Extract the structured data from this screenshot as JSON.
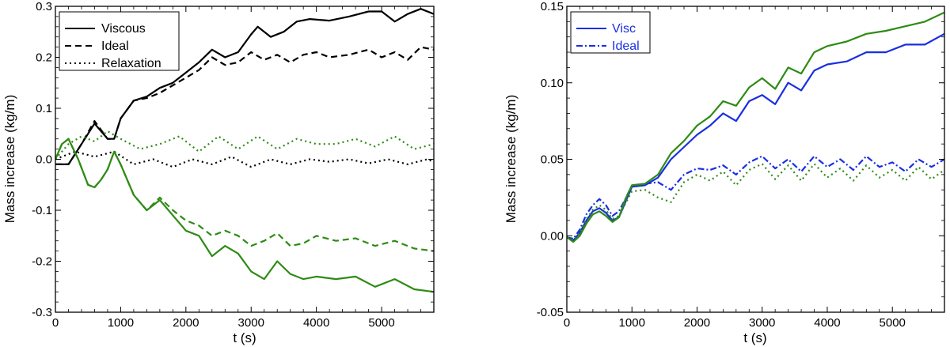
{
  "chart_data": [
    {
      "type": "line",
      "xlabel": "t (s)",
      "ylabel": "Mass increase (kg/m)",
      "xlim": [
        0,
        5800
      ],
      "ylim": [
        -0.3,
        0.3
      ],
      "xticks": [
        0,
        1000,
        2000,
        3000,
        4000,
        5000
      ],
      "xtick_labels": [
        "0",
        "1000",
        "2000",
        "3000",
        "4000",
        "5000"
      ],
      "yticks": [
        -0.3,
        -0.2,
        -0.1,
        0.0,
        0.1,
        0.2,
        0.3
      ],
      "ytick_labels": [
        "-0.3",
        "-0.2",
        "-0.1",
        "0.0",
        "0.1",
        "0.2",
        "0.3"
      ],
      "legend": [
        {
          "label": "Viscous",
          "style": "solid",
          "color": "#000000"
        },
        {
          "label": "Ideal",
          "style": "dashed",
          "color": "#000000"
        },
        {
          "label": "Relaxation",
          "style": "dotted",
          "color": "#000000"
        }
      ],
      "legend_position": "top-left",
      "series": [
        {
          "name": "Viscous (black)",
          "color": "#000000",
          "style": "solid",
          "x": [
            0,
            200,
            400,
            600,
            800,
            900,
            1000,
            1200,
            1400,
            1600,
            1800,
            2000,
            2200,
            2400,
            2600,
            2800,
            3000,
            3100,
            3300,
            3500,
            3700,
            3900,
            4200,
            4500,
            4800,
            5000,
            5200,
            5400,
            5600,
            5800
          ],
          "y": [
            -0.01,
            -0.01,
            0.03,
            0.07,
            0.04,
            0.04,
            0.08,
            0.115,
            0.123,
            0.14,
            0.15,
            0.17,
            0.19,
            0.215,
            0.2,
            0.21,
            0.245,
            0.26,
            0.24,
            0.25,
            0.27,
            0.275,
            0.272,
            0.28,
            0.29,
            0.29,
            0.27,
            0.285,
            0.295,
            0.285
          ]
        },
        {
          "name": "Ideal (black)",
          "color": "#000000",
          "style": "dashed",
          "x": [
            0,
            200,
            400,
            600,
            800,
            900,
            1000,
            1200,
            1400,
            1600,
            1800,
            2000,
            2200,
            2400,
            2600,
            2800,
            3000,
            3200,
            3400,
            3600,
            3800,
            4000,
            4200,
            4500,
            4800,
            5000,
            5200,
            5400,
            5600,
            5800
          ],
          "y": [
            -0.01,
            -0.01,
            0.03,
            0.075,
            0.04,
            0.04,
            0.08,
            0.115,
            0.12,
            0.13,
            0.145,
            0.16,
            0.175,
            0.2,
            0.185,
            0.19,
            0.21,
            0.195,
            0.205,
            0.19,
            0.205,
            0.21,
            0.2,
            0.205,
            0.215,
            0.2,
            0.21,
            0.195,
            0.22,
            0.215
          ]
        },
        {
          "name": "Relaxation (black)",
          "color": "#000000",
          "style": "dotted",
          "x": [
            0,
            300,
            600,
            900,
            1200,
            1500,
            1800,
            2100,
            2400,
            2700,
            3000,
            3300,
            3600,
            3900,
            4200,
            4500,
            4800,
            5100,
            5400,
            5700,
            5800
          ],
          "y": [
            0.0,
            0.015,
            0.005,
            0.015,
            -0.01,
            0.0,
            -0.015,
            0.0,
            -0.01,
            0.005,
            -0.015,
            0.0,
            -0.01,
            0.0,
            -0.005,
            0.0,
            -0.008,
            0.0,
            -0.01,
            0.0,
            -0.005
          ]
        },
        {
          "name": "Viscous (green)",
          "color": "#2e8b14",
          "style": "solid",
          "x": [
            0,
            100,
            200,
            350,
            500,
            600,
            700,
            800,
            900,
            1000,
            1200,
            1400,
            1600,
            1800,
            2000,
            2200,
            2400,
            2600,
            2800,
            3000,
            3200,
            3400,
            3600,
            3800,
            4000,
            4300,
            4600,
            4900,
            5200,
            5500,
            5800
          ],
          "y": [
            0.0,
            0.03,
            0.04,
            0.0,
            -0.05,
            -0.055,
            -0.04,
            -0.02,
            0.015,
            -0.01,
            -0.07,
            -0.1,
            -0.08,
            -0.11,
            -0.14,
            -0.15,
            -0.19,
            -0.17,
            -0.185,
            -0.22,
            -0.235,
            -0.2,
            -0.225,
            -0.235,
            -0.23,
            -0.235,
            -0.23,
            -0.25,
            -0.235,
            -0.255,
            -0.26
          ]
        },
        {
          "name": "Ideal (green)",
          "color": "#2e8b14",
          "style": "dashed",
          "x": [
            0,
            100,
            200,
            350,
            500,
            600,
            700,
            800,
            900,
            1000,
            1200,
            1400,
            1600,
            1800,
            2000,
            2200,
            2400,
            2600,
            2800,
            3000,
            3200,
            3400,
            3600,
            3800,
            4000,
            4300,
            4600,
            4900,
            5200,
            5500,
            5800
          ],
          "y": [
            0.0,
            0.03,
            0.04,
            0.0,
            -0.05,
            -0.055,
            -0.04,
            -0.02,
            0.015,
            -0.01,
            -0.07,
            -0.1,
            -0.075,
            -0.1,
            -0.12,
            -0.13,
            -0.15,
            -0.14,
            -0.15,
            -0.17,
            -0.16,
            -0.145,
            -0.17,
            -0.165,
            -0.15,
            -0.16,
            -0.155,
            -0.17,
            -0.16,
            -0.175,
            -0.18
          ]
        },
        {
          "name": "Relaxation (green)",
          "color": "#2e8b14",
          "style": "dotted",
          "x": [
            0,
            200,
            400,
            600,
            800,
            1000,
            1300,
            1600,
            1900,
            2200,
            2500,
            2800,
            3100,
            3400,
            3700,
            4000,
            4300,
            4600,
            4900,
            5200,
            5500,
            5800
          ],
          "y": [
            0.0,
            0.03,
            0.045,
            0.035,
            0.055,
            0.04,
            0.02,
            0.03,
            0.045,
            0.015,
            0.045,
            0.02,
            0.045,
            0.02,
            0.04,
            0.03,
            0.03,
            0.04,
            0.025,
            0.045,
            0.02,
            0.03
          ]
        }
      ]
    },
    {
      "type": "line",
      "xlabel": "t (s)",
      "ylabel": "Mass increase (kg/m)",
      "xlim": [
        0,
        5800
      ],
      "ylim": [
        -0.05,
        0.15
      ],
      "xticks": [
        0,
        1000,
        2000,
        3000,
        4000,
        5000
      ],
      "xtick_labels": [
        "0",
        "1000",
        "2000",
        "3000",
        "4000",
        "5000"
      ],
      "yticks": [
        -0.05,
        0.0,
        0.05,
        0.1,
        0.15
      ],
      "ytick_labels": [
        "-0.05",
        "0.00",
        "0.05",
        "0.10",
        "0.15"
      ],
      "legend": [
        {
          "label": "Visc",
          "style": "solid",
          "color": "#1a2fe0"
        },
        {
          "label": "Ideal",
          "style": "dashdot",
          "color": "#1a2fe0"
        }
      ],
      "legend_position": "top-left",
      "series": [
        {
          "name": "Visc (blue)",
          "color": "#1a2fe0",
          "style": "solid",
          "x": [
            0,
            100,
            200,
            300,
            400,
            500,
            600,
            700,
            800,
            900,
            1000,
            1200,
            1400,
            1600,
            1800,
            2000,
            2200,
            2400,
            2600,
            2800,
            3000,
            3200,
            3400,
            3600,
            3800,
            4000,
            4300,
            4600,
            4900,
            5200,
            5500,
            5800
          ],
          "y": [
            -0.001,
            -0.003,
            0.002,
            0.01,
            0.016,
            0.018,
            0.015,
            0.01,
            0.012,
            0.022,
            0.032,
            0.033,
            0.038,
            0.05,
            0.058,
            0.066,
            0.072,
            0.08,
            0.075,
            0.088,
            0.092,
            0.086,
            0.1,
            0.095,
            0.108,
            0.112,
            0.114,
            0.12,
            0.12,
            0.125,
            0.125,
            0.132
          ]
        },
        {
          "name": "Ideal (blue)",
          "color": "#1a2fe0",
          "style": "dashdot",
          "x": [
            0,
            100,
            200,
            300,
            400,
            500,
            600,
            700,
            800,
            900,
            1000,
            1200,
            1400,
            1600,
            1800,
            2000,
            2200,
            2400,
            2600,
            2800,
            3000,
            3200,
            3400,
            3600,
            3800,
            4000,
            4200,
            4400,
            4600,
            4800,
            5000,
            5200,
            5400,
            5600,
            5800
          ],
          "y": [
            -0.001,
            -0.002,
            0.004,
            0.014,
            0.02,
            0.024,
            0.02,
            0.013,
            0.016,
            0.024,
            0.033,
            0.034,
            0.035,
            0.03,
            0.04,
            0.044,
            0.043,
            0.046,
            0.04,
            0.048,
            0.052,
            0.044,
            0.05,
            0.042,
            0.052,
            0.045,
            0.05,
            0.043,
            0.052,
            0.045,
            0.048,
            0.042,
            0.05,
            0.045,
            0.05
          ]
        },
        {
          "name": "Visc (green)",
          "color": "#2e8b14",
          "style": "solid",
          "x": [
            0,
            100,
            200,
            300,
            400,
            500,
            600,
            700,
            800,
            900,
            1000,
            1200,
            1400,
            1600,
            1800,
            2000,
            2200,
            2400,
            2600,
            2800,
            3000,
            3200,
            3400,
            3600,
            3800,
            4000,
            4300,
            4600,
            4900,
            5200,
            5500,
            5800
          ],
          "y": [
            -0.001,
            -0.004,
            0.0,
            0.008,
            0.014,
            0.016,
            0.013,
            0.009,
            0.012,
            0.024,
            0.033,
            0.034,
            0.04,
            0.054,
            0.062,
            0.072,
            0.078,
            0.088,
            0.085,
            0.097,
            0.103,
            0.096,
            0.11,
            0.106,
            0.12,
            0.124,
            0.127,
            0.132,
            0.134,
            0.137,
            0.14,
            0.146
          ]
        },
        {
          "name": "Relaxation (green)",
          "color": "#2e8b14",
          "style": "dotted",
          "x": [
            0,
            100,
            200,
            300,
            400,
            500,
            600,
            700,
            800,
            900,
            1000,
            1200,
            1400,
            1600,
            1800,
            2000,
            2200,
            2400,
            2600,
            2800,
            3000,
            3200,
            3400,
            3600,
            3800,
            4000,
            4200,
            4400,
            4600,
            4800,
            5000,
            5200,
            5400,
            5600,
            5800
          ],
          "y": [
            -0.001,
            -0.003,
            0.002,
            0.011,
            0.017,
            0.02,
            0.017,
            0.011,
            0.013,
            0.021,
            0.029,
            0.03,
            0.025,
            0.022,
            0.035,
            0.04,
            0.036,
            0.042,
            0.033,
            0.043,
            0.047,
            0.037,
            0.046,
            0.036,
            0.047,
            0.038,
            0.044,
            0.036,
            0.046,
            0.038,
            0.043,
            0.036,
            0.045,
            0.037,
            0.043
          ]
        }
      ]
    }
  ]
}
